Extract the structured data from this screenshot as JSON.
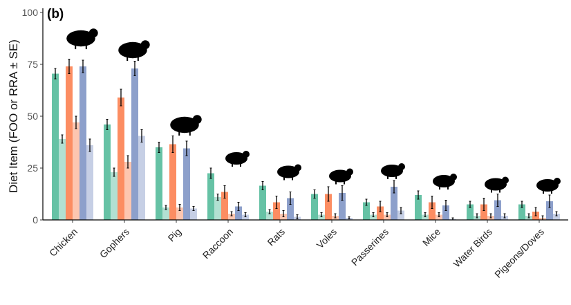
{
  "chart_data": {
    "type": "bar",
    "panel_label": "(b)",
    "ylabel": "Diet Item (FOO or RRA ± SE)",
    "xlabel": "",
    "ylim": [
      0,
      100
    ],
    "yticks": [
      "0",
      "25",
      "50",
      "75",
      "100"
    ],
    "grid": false,
    "legend": "none",
    "categories": [
      "Chicken",
      "Gophers",
      "Pig",
      "Raccoon",
      "Rats",
      "Voles",
      "Passerines",
      "Mice",
      "Water Birds",
      "Pigeons/Doves"
    ],
    "category_icons": [
      "rooster-icon",
      "gopher-icon",
      "pig-icon",
      "raccoon-icon",
      "rat-icon",
      "vole-icon",
      "passerine-icon",
      "mouse-icon",
      "duck-icon",
      "pigeon-icon"
    ],
    "series": [
      {
        "color": "#66c2a5",
        "opacity": 1,
        "values": [
          70.5,
          46,
          35,
          22.5,
          16.5,
          12.5,
          8.5,
          12,
          7.5,
          7.5
        ],
        "se": [
          2.5,
          2.5,
          2.5,
          2.5,
          2,
          2,
          1.5,
          2,
          1.5,
          1.5
        ]
      },
      {
        "color": "#66c2a5",
        "opacity": 0.5,
        "values": [
          39,
          23,
          6,
          11,
          4,
          2.5,
          2.5,
          2.5,
          2,
          2
        ],
        "se": [
          2,
          2,
          1,
          1.5,
          1,
          1,
          1,
          1,
          1,
          1
        ]
      },
      {
        "color": "#fc8d62",
        "opacity": 1,
        "values": [
          74,
          59,
          36.5,
          13.5,
          8.5,
          12.5,
          6.5,
          8.5,
          7.5,
          4
        ],
        "se": [
          3.5,
          4,
          4,
          3,
          3,
          3.5,
          2.5,
          3,
          3,
          2
        ]
      },
      {
        "color": "#fc8d62",
        "opacity": 0.5,
        "values": [
          47,
          28,
          6,
          3,
          3,
          2,
          2.5,
          2.5,
          2,
          1
        ],
        "se": [
          3,
          3,
          1.5,
          1,
          1.5,
          1,
          1,
          1,
          1,
          1
        ]
      },
      {
        "color": "#8da0cb",
        "opacity": 1,
        "values": [
          74,
          73,
          34.5,
          6.5,
          10.5,
          13,
          16,
          7,
          9.5,
          9
        ],
        "se": [
          3,
          3.5,
          3.5,
          2,
          3,
          3.5,
          3,
          2.5,
          3,
          3
        ]
      },
      {
        "color": "#8da0cb",
        "opacity": 0.5,
        "values": [
          36,
          40.5,
          5.5,
          2.5,
          1.5,
          1,
          4.5,
          0.5,
          2,
          3
        ],
        "se": [
          3,
          3,
          1,
          1,
          1,
          0.5,
          1.5,
          0.5,
          1,
          1
        ]
      }
    ]
  }
}
